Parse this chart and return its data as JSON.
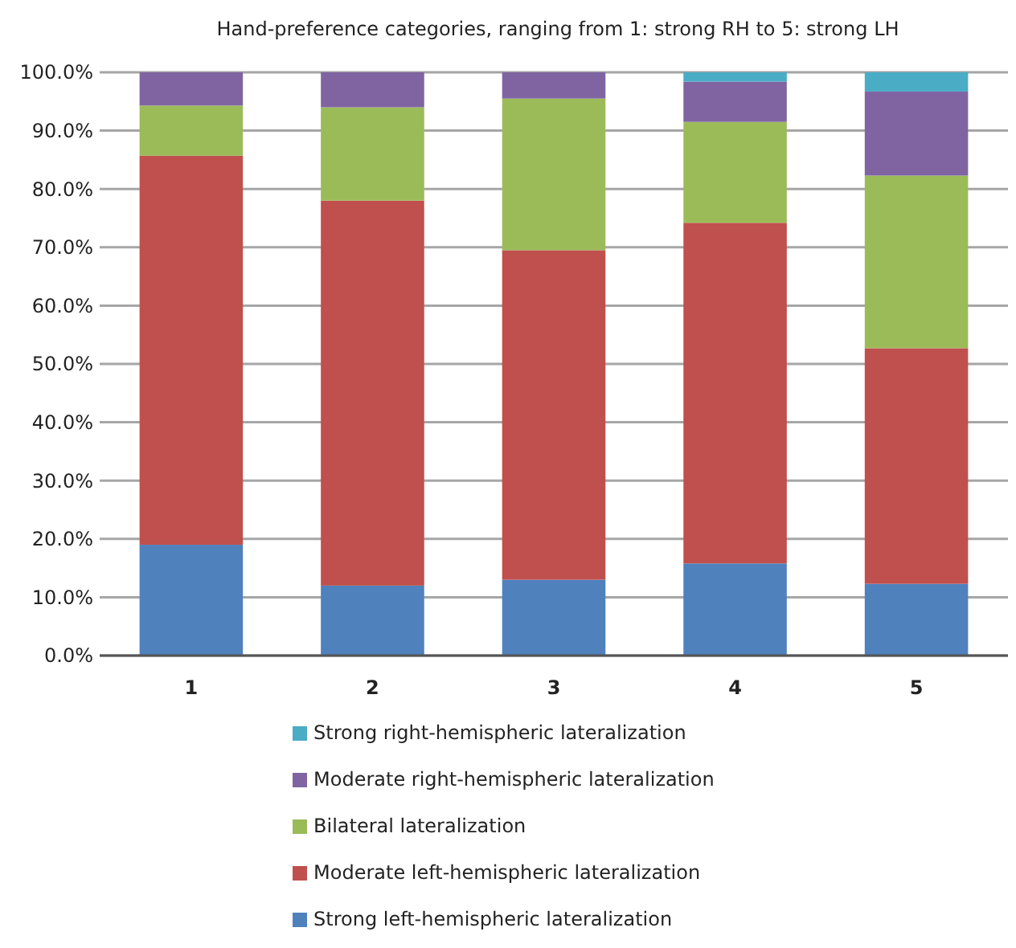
{
  "chart_data": {
    "type": "bar",
    "stacked": true,
    "title": "Hand-preference categories, ranging from 1: strong RH to 5: strong LH",
    "categories": [
      "1",
      "2",
      "3",
      "4",
      "5"
    ],
    "series": [
      {
        "name": "Strong left-hemispheric lateralization",
        "color": "#4f81bd",
        "values": [
          19,
          12,
          13,
          15.8,
          12.3
        ]
      },
      {
        "name": "Moderate left-hemispheric lateralization",
        "color": "#c0504d",
        "values": [
          66.7,
          66,
          56.5,
          58.4,
          40.4
        ]
      },
      {
        "name": "Bilateral lateralization",
        "color": "#9bbb59",
        "values": [
          8.6,
          16,
          26,
          17.3,
          29.6
        ]
      },
      {
        "name": "Moderate right-hemispheric lateralization",
        "color": "#8064a2",
        "values": [
          5.7,
          6,
          4.5,
          6.9,
          14.4
        ]
      },
      {
        "name": "Strong right-hemispheric lateralization",
        "color": "#4bacc6",
        "values": [
          0,
          0,
          0,
          1.6,
          3.3
        ]
      }
    ],
    "ylim": [
      0,
      100
    ],
    "yticks": [
      {
        "value": 0,
        "label": "0.0%"
      },
      {
        "value": 10,
        "label": "10.0%"
      },
      {
        "value": 20,
        "label": "20.0%"
      },
      {
        "value": 30,
        "label": "30.0%"
      },
      {
        "value": 40,
        "label": "40.0%"
      },
      {
        "value": 50,
        "label": "50.0%"
      },
      {
        "value": 60,
        "label": "60.0%"
      },
      {
        "value": 70,
        "label": "70.0%"
      },
      {
        "value": 80,
        "label": "80.0%"
      },
      {
        "value": 90,
        "label": "90.0%"
      },
      {
        "value": 100,
        "label": "100.0%"
      }
    ],
    "grid": "y",
    "legend": "bottom"
  }
}
